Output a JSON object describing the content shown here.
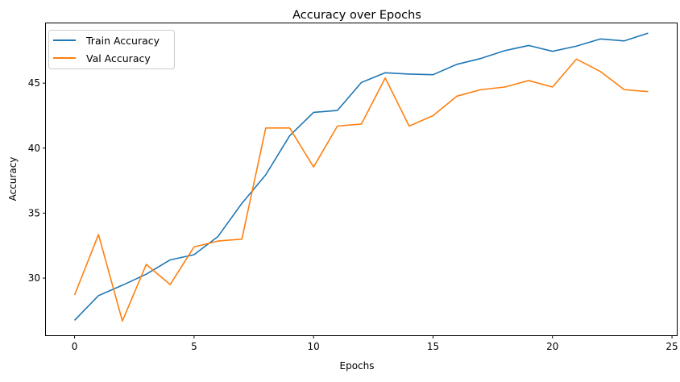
{
  "chart_data": {
    "type": "line",
    "title": "Accuracy over Epochs",
    "xlabel": "Epochs",
    "ylabel": "Accuracy",
    "xlim": [
      -1.2,
      25.2
    ],
    "ylim": [
      25.6,
      49.6
    ],
    "xticks": [
      0,
      5,
      10,
      15,
      20,
      25
    ],
    "yticks": [
      30,
      35,
      40,
      45
    ],
    "grid": false,
    "legend_position": "top-left",
    "x": [
      0,
      1,
      2,
      3,
      4,
      5,
      6,
      7,
      8,
      9,
      10,
      11,
      12,
      13,
      14,
      15,
      16,
      17,
      18,
      19,
      20,
      21,
      22,
      23,
      24
    ],
    "series": [
      {
        "name": "Train Accuracy",
        "color": "#1f77b4",
        "values": [
          26.75,
          28.65,
          29.45,
          30.3,
          31.4,
          31.8,
          33.2,
          35.75,
          37.95,
          40.95,
          42.75,
          42.9,
          45.05,
          45.8,
          45.7,
          45.65,
          46.45,
          46.9,
          47.5,
          47.9,
          47.45,
          47.85,
          48.4,
          48.25,
          48.85
        ]
      },
      {
        "name": "Val Accuracy",
        "color": "#ff7f0e",
        "values": [
          28.7,
          33.35,
          26.7,
          31.05,
          29.5,
          32.4,
          32.85,
          33.0,
          41.55,
          41.55,
          38.55,
          41.7,
          41.85,
          45.4,
          41.7,
          42.5,
          44.0,
          44.5,
          44.7,
          45.2,
          44.7,
          46.85,
          45.9,
          44.5,
          44.35
        ]
      }
    ]
  }
}
